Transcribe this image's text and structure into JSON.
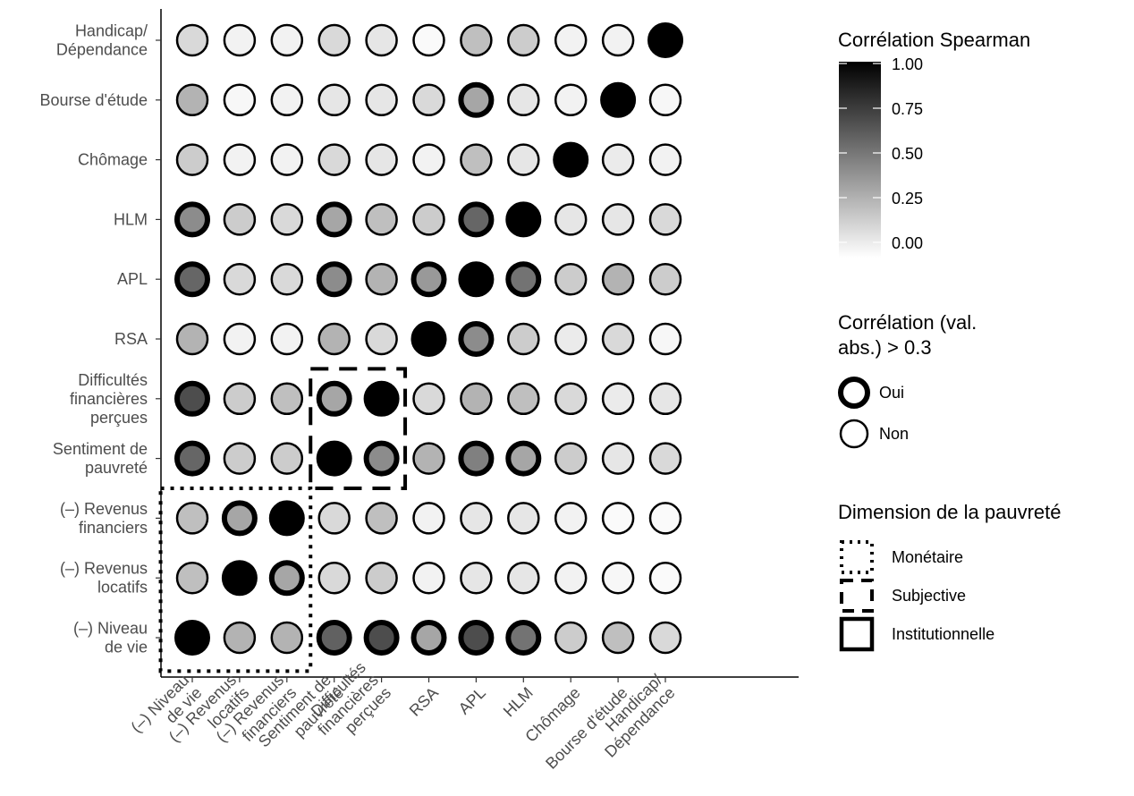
{
  "chart_data": {
    "type": "heatmap",
    "title": "",
    "xlabel": "",
    "ylabel": "",
    "x_categories": [
      [
        "(–) Niveau",
        "de vie"
      ],
      [
        "(–) Revenus",
        "locatifs"
      ],
      [
        "(–) Revenus",
        "financiers"
      ],
      [
        "Sentiment de",
        "pauvreté"
      ],
      [
        "Difficultés",
        "financières",
        "perçues"
      ],
      [
        "RSA"
      ],
      [
        "APL"
      ],
      [
        "HLM"
      ],
      [
        "Chômage"
      ],
      [
        "Bourse d'étude"
      ],
      [
        "Handicap/",
        "Dépendance"
      ]
    ],
    "y_categories": [
      [
        "(–) Niveau",
        "de vie"
      ],
      [
        "(–) Revenus",
        "locatifs"
      ],
      [
        "(–) Revenus",
        "financiers"
      ],
      [
        "Sentiment de",
        "pauvreté"
      ],
      [
        "Difficultés",
        "financières",
        "perçues"
      ],
      [
        "RSA"
      ],
      [
        "APL"
      ],
      [
        "HLM"
      ],
      [
        "Chômage"
      ],
      [
        "Bourse d'étude"
      ],
      [
        "Handicap/",
        "Dépendance"
      ]
    ],
    "note": "matrix rows follow y_categories (bottom to top), columns follow x_categories (left to right); values are Spearman correlation magnitudes",
    "matrix": [
      [
        1.0,
        0.3,
        0.3,
        0.62,
        0.7,
        0.35,
        0.7,
        0.55,
        0.2,
        0.25,
        0.15
      ],
      [
        0.25,
        1.0,
        0.35,
        0.15,
        0.2,
        0.05,
        0.1,
        0.1,
        0.05,
        0.03,
        0.02
      ],
      [
        0.25,
        0.35,
        1.0,
        0.15,
        0.25,
        0.05,
        0.1,
        0.1,
        0.05,
        0.02,
        0.02
      ],
      [
        0.6,
        0.2,
        0.2,
        1.0,
        0.45,
        0.3,
        0.5,
        0.35,
        0.2,
        0.1,
        0.15
      ],
      [
        0.7,
        0.2,
        0.25,
        0.35,
        1.0,
        0.15,
        0.3,
        0.25,
        0.15,
        0.08,
        0.1
      ],
      [
        0.3,
        0.05,
        0.05,
        0.3,
        0.15,
        1.0,
        0.45,
        0.2,
        0.08,
        0.15,
        0.03
      ],
      [
        0.6,
        0.15,
        0.15,
        0.45,
        0.3,
        0.4,
        1.0,
        0.55,
        0.2,
        0.3,
        0.2
      ],
      [
        0.45,
        0.2,
        0.15,
        0.35,
        0.25,
        0.2,
        0.6,
        1.0,
        0.1,
        0.1,
        0.15
      ],
      [
        0.2,
        0.05,
        0.05,
        0.15,
        0.1,
        0.05,
        0.25,
        0.1,
        1.0,
        0.08,
        0.05
      ],
      [
        0.3,
        0.03,
        0.05,
        0.1,
        0.1,
        0.15,
        0.35,
        0.1,
        0.05,
        1.0,
        0.03
      ],
      [
        0.15,
        0.05,
        0.05,
        0.15,
        0.1,
        0.02,
        0.25,
        0.2,
        0.05,
        0.05,
        1.0
      ]
    ],
    "strong_threshold": 0.3,
    "color_scale": {
      "title": "Corrélation Spearman",
      "low_color": "#ffffff",
      "high_color": "#000000",
      "ticks": [
        "0.00",
        "0.25",
        "0.50",
        "0.75",
        "1.00"
      ],
      "range": [
        0,
        1
      ]
    },
    "strength_legend": {
      "title_lines": [
        "Corrélation (val.",
        "abs.) > 0.3"
      ],
      "items": [
        "Oui",
        "Non"
      ]
    },
    "dimension_legend": {
      "title": "Dimension de la pauvreté",
      "items": [
        {
          "label": "Monétaire",
          "style": "dotted",
          "x_range": [
            "(–) Niveau de vie",
            "(–) Revenus financiers"
          ],
          "y_range": [
            "(–) Niveau de vie",
            "(–) Revenus financiers"
          ]
        },
        {
          "label": "Subjective",
          "style": "dashed",
          "x_range": [
            "Sentiment de pauvreté",
            "Difficultés financières perçues"
          ],
          "y_range": [
            "Sentiment de pauvreté",
            "Difficultés financières perçues"
          ]
        },
        {
          "label": "Institutionnelle",
          "style": "solid",
          "x_range": [
            "RSA",
            "Handicap/Dépendance"
          ],
          "y_range": [
            "RSA",
            "Handicap/Dépendance"
          ]
        }
      ]
    },
    "grid": false,
    "legend_position": "right"
  }
}
